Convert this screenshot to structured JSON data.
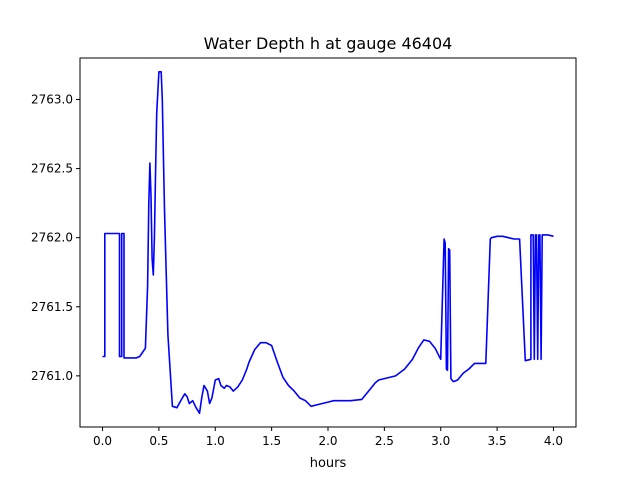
{
  "chart_data": {
    "type": "line",
    "title": "Water Depth h at gauge 46404",
    "xlabel": "hours",
    "ylabel": "",
    "xlim": [
      -0.2,
      4.2
    ],
    "ylim": [
      2760.63,
      2763.3
    ],
    "xticks": [
      0.0,
      0.5,
      1.0,
      1.5,
      2.0,
      2.5,
      3.0,
      3.5,
      4.0
    ],
    "xtick_labels": [
      "0.0",
      "0.5",
      "1.0",
      "1.5",
      "2.0",
      "2.5",
      "3.0",
      "3.5",
      "4.0"
    ],
    "yticks": [
      2761.0,
      2761.5,
      2762.0,
      2762.5,
      2763.0
    ],
    "ytick_labels": [
      "2761.0",
      "2761.5",
      "2762.0",
      "2762.5",
      "2763.0"
    ],
    "grid": false,
    "line_color": "#0000ff",
    "series": [
      {
        "x": [
          0.0,
          0.02,
          0.02,
          0.15,
          0.15,
          0.17,
          0.17,
          0.19,
          0.19,
          0.3,
          0.3,
          0.33,
          0.38,
          0.4,
          0.41,
          0.42,
          0.43,
          0.44,
          0.45,
          0.46,
          0.47,
          0.48,
          0.5,
          0.52,
          0.53,
          0.55,
          0.58,
          0.62,
          0.66,
          0.7,
          0.73,
          0.75,
          0.77,
          0.8,
          0.83,
          0.86,
          0.88,
          0.9,
          0.93,
          0.95,
          0.97,
          1.0,
          1.03,
          1.05,
          1.08,
          1.1,
          1.13,
          1.16,
          1.2,
          1.24,
          1.28,
          1.3,
          1.35,
          1.4,
          1.45,
          1.5,
          1.55,
          1.6,
          1.65,
          1.7,
          1.75,
          1.8,
          1.85,
          1.9,
          2.0,
          2.05,
          2.1,
          2.2,
          2.3,
          2.37,
          2.42,
          2.45,
          2.5,
          2.6,
          2.68,
          2.75,
          2.8,
          2.85,
          2.9,
          2.95,
          3.0,
          3.03,
          3.04,
          3.05,
          3.06,
          3.07,
          3.08,
          3.09,
          3.1,
          3.11,
          3.12,
          3.15,
          3.2,
          3.25,
          3.3,
          3.4,
          3.44,
          3.45,
          3.5,
          3.55,
          3.6,
          3.65,
          3.7,
          3.75,
          3.75,
          3.8,
          3.8,
          3.82,
          3.83,
          3.84,
          3.85,
          3.86,
          3.87,
          3.88,
          3.89,
          3.9,
          3.91,
          3.95,
          4.0
        ],
        "y": [
          2761.14,
          2761.14,
          2762.03,
          2762.03,
          2761.14,
          2761.14,
          2762.03,
          2762.03,
          2761.13,
          2761.13,
          2761.13,
          2761.14,
          2761.2,
          2761.65,
          2762.25,
          2762.54,
          2762.3,
          2761.85,
          2761.73,
          2762.0,
          2762.45,
          2762.9,
          2763.2,
          2763.2,
          2763.0,
          2762.2,
          2761.3,
          2760.78,
          2760.77,
          2760.83,
          2760.87,
          2760.85,
          2760.8,
          2760.82,
          2760.77,
          2760.73,
          2760.84,
          2760.93,
          2760.89,
          2760.8,
          2760.84,
          2760.97,
          2760.98,
          2760.93,
          2760.91,
          2760.93,
          2760.92,
          2760.89,
          2760.92,
          2760.97,
          2761.05,
          2761.1,
          2761.19,
          2761.24,
          2761.24,
          2761.22,
          2761.1,
          2760.99,
          2760.93,
          2760.89,
          2760.84,
          2760.82,
          2760.78,
          2760.79,
          2760.81,
          2760.82,
          2760.82,
          2760.82,
          2760.83,
          2760.9,
          2760.95,
          2760.97,
          2760.98,
          2761.0,
          2761.05,
          2761.12,
          2761.2,
          2761.26,
          2761.25,
          2761.2,
          2761.12,
          2761.99,
          2761.96,
          2761.05,
          2761.04,
          2761.92,
          2761.91,
          2760.98,
          2760.97,
          2760.96,
          2760.96,
          2760.97,
          2761.02,
          2761.05,
          2761.09,
          2761.09,
          2761.99,
          2762.0,
          2762.01,
          2762.01,
          2762.0,
          2761.99,
          2761.99,
          2761.11,
          2761.11,
          2761.12,
          2762.02,
          2762.02,
          2761.12,
          2762.02,
          2762.02,
          2761.12,
          2762.02,
          2762.02,
          2761.12,
          2762.02,
          2762.02,
          2762.02,
          2762.01
        ]
      }
    ]
  }
}
